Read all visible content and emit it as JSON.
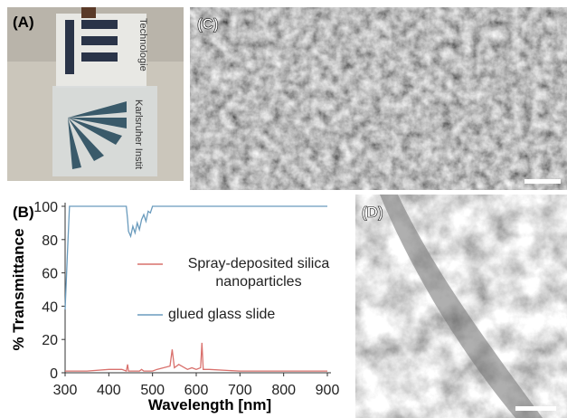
{
  "panels": {
    "a": "(A)",
    "b": "(B)",
    "c": "(C)",
    "d": "(D)"
  },
  "photo_text": [
    "Technologie",
    "Karlsruher Instit"
  ],
  "chart_data": {
    "type": "line",
    "x_label": "Wavelength [nm]",
    "y_label": "% Transmittance",
    "x": [
      300,
      305,
      310,
      350,
      400,
      430,
      440,
      443,
      445,
      450,
      455,
      460,
      465,
      470,
      475,
      480,
      485,
      490,
      495,
      500,
      510,
      540,
      545,
      550,
      560,
      580,
      590,
      600,
      610,
      613,
      616,
      630,
      700,
      800,
      900
    ],
    "series": [
      {
        "name": "Spray-deposited silica nanoparticles",
        "color": "#d9706c",
        "values": [
          1,
          1,
          1,
          1,
          2,
          2,
          1,
          5,
          1,
          1,
          1,
          1,
          1,
          1,
          2,
          1,
          1,
          1,
          1,
          1,
          2,
          4,
          14,
          3,
          5,
          2,
          3,
          2,
          3,
          18,
          2,
          2,
          1,
          1,
          1
        ]
      },
      {
        "name": "glued glass slide",
        "color": "#6a9bbd",
        "values": [
          38,
          70,
          100,
          100,
          100,
          100,
          100,
          92,
          85,
          82,
          88,
          84,
          90,
          86,
          92,
          95,
          91,
          97,
          96,
          100,
          100,
          100,
          100,
          100,
          100,
          100,
          100,
          100,
          100,
          100,
          100,
          100,
          100,
          100,
          100
        ]
      }
    ],
    "xlim": [
      300,
      900
    ],
    "xticks": [
      300,
      400,
      500,
      600,
      700,
      800,
      900
    ],
    "ylim": [
      0,
      100
    ],
    "yticks": [
      0,
      20,
      40,
      60,
      80,
      100
    ]
  }
}
